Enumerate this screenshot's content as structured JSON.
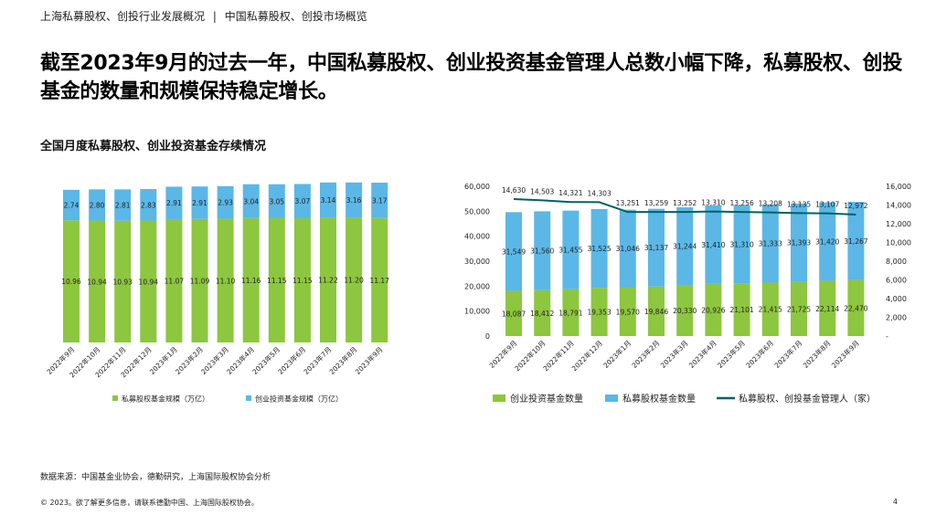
{
  "header": {
    "breadcrumb_left": "上海私募股权、创投行业发展概况",
    "separator": "|",
    "breadcrumb_right": "中国私募股权、创投市场概览"
  },
  "title": "截至2023年9月的过去一年，中国私募股权、创业投资基金管理人总数小幅下降，私募股权、创投基金的数量和规模保持稳定增长。",
  "subtitle": "全国月度私募股权、创业投资基金存续情况",
  "footer": {
    "source": "数据来源：中国基金业协会，德勤研究，上海国际股权协会分析",
    "copyright": "© 2023。欲了解更多信息，请联系德勤中国、上海国际股权协会。",
    "page_number": "4"
  },
  "colors": {
    "green": "#8DC63F",
    "blue": "#5BB7E5",
    "line": "#006163"
  },
  "chart_data": [
    {
      "type": "bar",
      "stacked": true,
      "categories": [
        "2022年9月",
        "2022年10月",
        "2022年11月",
        "2022年12月",
        "2023年1月",
        "2023年2月",
        "2023年3月",
        "2023年4月",
        "2023年5月",
        "2023年6月",
        "2023年7月",
        "2023年8月",
        "2023年9月"
      ],
      "series": [
        {
          "name": "私募股权基金规模（万亿）",
          "values": [
            10.96,
            10.94,
            10.93,
            10.94,
            11.07,
            11.09,
            11.1,
            11.16,
            11.15,
            11.15,
            11.22,
            11.2,
            11.17
          ],
          "labels": [
            "10.96",
            "10.94",
            "10.93",
            "10.94",
            "11.07",
            "11.09",
            "11.10",
            "11.16",
            "11.15",
            "11.15",
            "11.22",
            "11.20",
            "11.17"
          ]
        },
        {
          "name": "创业投资基金规模（万亿）",
          "values": [
            2.74,
            2.8,
            2.81,
            2.83,
            2.91,
            2.91,
            2.93,
            3.04,
            3.05,
            3.07,
            3.14,
            3.16,
            3.17
          ],
          "labels": [
            "2.74",
            "2.80",
            "2.81",
            "2.83",
            "2.91",
            "2.91",
            "2.93",
            "3.04",
            "3.05",
            "3.07",
            "3.14",
            "3.16",
            "3.17"
          ]
        }
      ],
      "ylim": [
        0,
        15
      ],
      "axes_visible": false,
      "legend": "bottom"
    },
    {
      "type": "bar+line",
      "stacked": true,
      "categories": [
        "2022年9月",
        "2022年10月",
        "2022年11月",
        "2022年12月",
        "2023年1月",
        "2023年2月",
        "2023年3月",
        "2023年4月",
        "2023年5月",
        "2023年6月",
        "2023年7月",
        "2023年8月",
        "2023年9月"
      ],
      "series": [
        {
          "name": "创业投资基金数量",
          "values": [
            18087,
            18412,
            18791,
            19353,
            19570,
            19846,
            20330,
            20926,
            21101,
            21415,
            21725,
            22114,
            22470
          ],
          "labels": [
            "18,087",
            "18,412",
            "18,791",
            "19,353",
            "19,570",
            "19,846",
            "20,330",
            "20,926",
            "21,101",
            "21,415",
            "21,725",
            "22,114",
            "22,470"
          ]
        },
        {
          "name": "私募股权基金数量",
          "values": [
            31549,
            31560,
            31455,
            31525,
            31046,
            31137,
            31244,
            31410,
            31310,
            31333,
            31393,
            31420,
            31267
          ],
          "labels": [
            "31,549",
            "31,560",
            "31,455",
            "31,525",
            "31,046",
            "31,137",
            "31,244",
            "31,410",
            "31,310",
            "31,333",
            "31,393",
            "31,420",
            "31,267"
          ]
        },
        {
          "name": "私募股权、创投基金管理人（家）",
          "type": "line",
          "axis": "right",
          "values": [
            14630,
            14503,
            14321,
            14303,
            13251,
            13259,
            13252,
            13310,
            13256,
            13208,
            13135,
            13107,
            12972
          ],
          "labels": [
            "14,630",
            "14,503",
            "14,321",
            "14,303",
            "13,251",
            "13,259",
            "13,252",
            "13,310",
            "13,256",
            "13,208",
            "13,135",
            "13,107",
            "12,972"
          ]
        }
      ],
      "ylim": [
        0,
        60000
      ],
      "yticks": [
        "0",
        "10000",
        "20000",
        "30000",
        "40000",
        "50000",
        "60000"
      ],
      "y2lim": [
        0,
        16000
      ],
      "y2ticks": [
        "-",
        "2,000",
        "4,000",
        "6,000",
        "8,000",
        "10,000",
        "12,000",
        "14,000",
        "16,000"
      ],
      "legend": "bottom"
    }
  ]
}
